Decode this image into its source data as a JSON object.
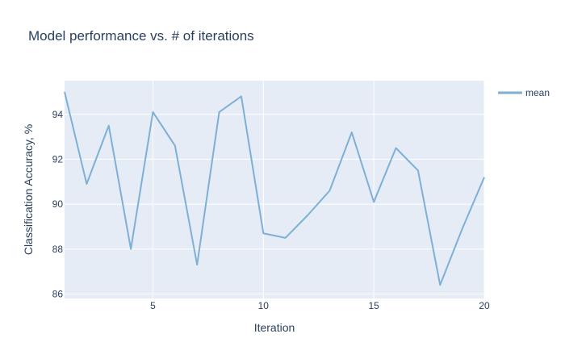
{
  "chart_data": {
    "type": "line",
    "title": "Model performance vs. # of iterations",
    "xlabel": "Iteration",
    "ylabel": "Classification Accuracy, %",
    "xlim": [
      1,
      20
    ],
    "ylim": [
      85.8,
      95.5
    ],
    "x_ticks": [
      5,
      10,
      15,
      20
    ],
    "y_ticks": [
      86,
      88,
      90,
      92,
      94
    ],
    "grid": true,
    "legend_position": "top-right",
    "plot_background": "#e5ecf6",
    "series": [
      {
        "name": "mean",
        "color": "#7eb0d5",
        "x": [
          1,
          2,
          3,
          4,
          5,
          6,
          7,
          8,
          9,
          10,
          11,
          12,
          13,
          14,
          15,
          16,
          17,
          18,
          19,
          20
        ],
        "y": [
          95.0,
          90.9,
          93.5,
          88.0,
          94.1,
          92.6,
          87.3,
          94.1,
          94.8,
          88.7,
          88.5,
          89.5,
          90.6,
          93.2,
          90.1,
          92.5,
          91.5,
          86.4,
          88.9,
          91.2
        ]
      }
    ]
  }
}
